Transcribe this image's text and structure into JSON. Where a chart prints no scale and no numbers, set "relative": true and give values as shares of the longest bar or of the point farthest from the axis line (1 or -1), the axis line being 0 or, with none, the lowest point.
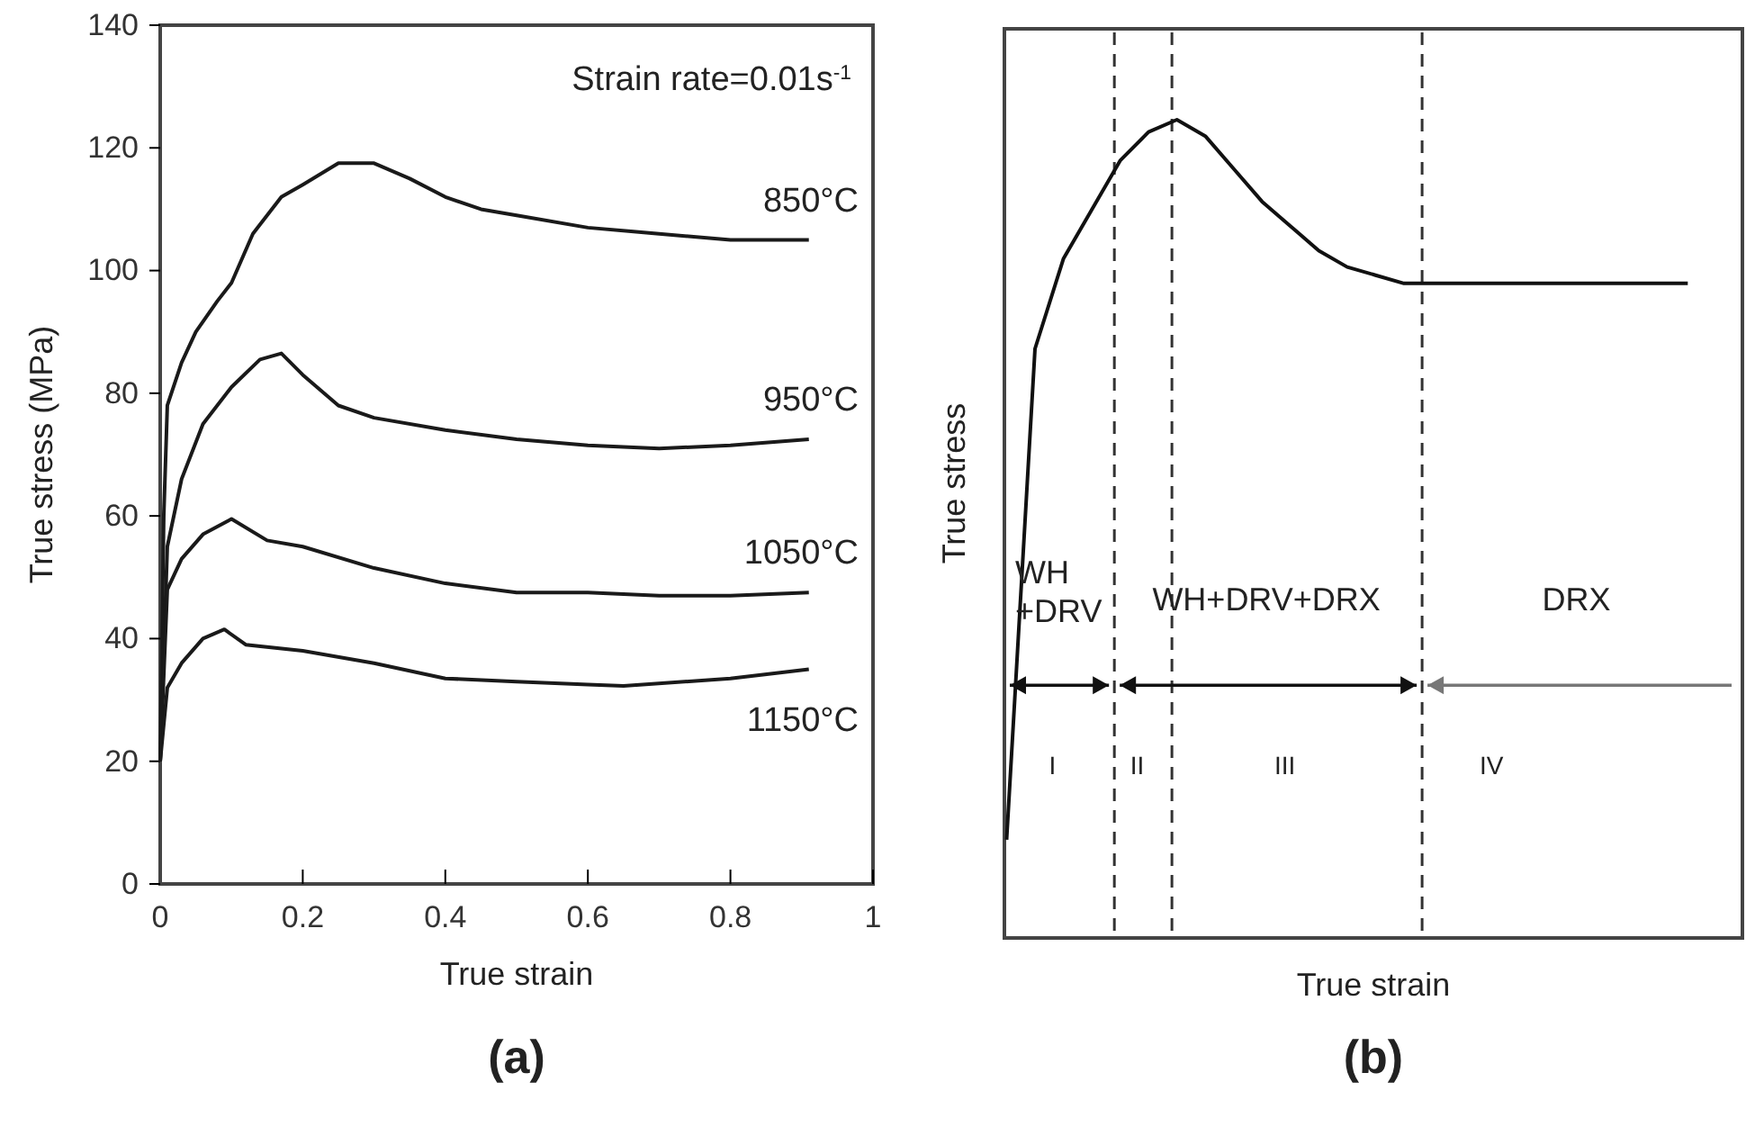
{
  "chart_data": [
    {
      "type": "line",
      "title": "(a)",
      "xlabel": "True strain",
      "ylabel": "True stress (MPa)",
      "xlim": [
        0,
        1
      ],
      "ylim": [
        0,
        140
      ],
      "xticks": [
        0,
        0.2,
        0.4,
        0.6,
        0.8,
        1
      ],
      "yticks": [
        0,
        20,
        40,
        60,
        80,
        100,
        120,
        140
      ],
      "grid": false,
      "marker": "none",
      "line_style": "solid",
      "annotations": [
        "Strain rate=0.01s$^{-1}$"
      ],
      "series": [
        {
          "name": "850°C",
          "color": "#1a1a1a",
          "x": [
            0,
            0.005,
            0.01,
            0.03,
            0.05,
            0.08,
            0.1,
            0.13,
            0.17,
            0.2,
            0.25,
            0.3,
            0.35,
            0.4,
            0.45,
            0.5,
            0.6,
            0.7,
            0.8,
            0.91
          ],
          "values": [
            20,
            60,
            78,
            85,
            90,
            95,
            98,
            106,
            112,
            114,
            117.5,
            117.5,
            115,
            112,
            110,
            109,
            107,
            106,
            105,
            105
          ]
        },
        {
          "name": "950°C",
          "color": "#1a1a1a",
          "x": [
            0,
            0.01,
            0.03,
            0.06,
            0.1,
            0.14,
            0.17,
            0.2,
            0.25,
            0.3,
            0.4,
            0.5,
            0.6,
            0.7,
            0.8,
            0.91
          ],
          "values": [
            20,
            55,
            66,
            75,
            81,
            85.5,
            86.5,
            83,
            78,
            76,
            74,
            72.5,
            71.5,
            71,
            71.5,
            72.5
          ]
        },
        {
          "name": "1050°C",
          "color": "#1a1a1a",
          "x": [
            0,
            0.01,
            0.03,
            0.06,
            0.1,
            0.15,
            0.2,
            0.3,
            0.4,
            0.5,
            0.6,
            0.7,
            0.8,
            0.91
          ],
          "values": [
            20,
            48,
            53,
            57,
            59.5,
            56,
            55,
            51.5,
            49,
            47.5,
            47.5,
            47,
            47,
            47.5
          ]
        },
        {
          "name": "1150°C",
          "color": "#1a1a1a",
          "x": [
            0,
            0.01,
            0.03,
            0.06,
            0.09,
            0.12,
            0.2,
            0.3,
            0.4,
            0.5,
            0.6,
            0.65,
            0.8,
            0.91
          ],
          "values": [
            20,
            32,
            36,
            40,
            41.5,
            39,
            38,
            36,
            33.5,
            33,
            32.5,
            32.3,
            33.5,
            35
          ]
        }
      ]
    },
    {
      "type": "line",
      "title": "(b)",
      "xlabel": "True strain",
      "ylabel": "True stress",
      "relative": true,
      "grid": false,
      "marker": "none",
      "line_style": "solid",
      "annotations": [
        "WH\n+DRV",
        "WH+DRV+DRX",
        "DRX",
        "I",
        "II",
        "III",
        "IV"
      ],
      "categories": [
        null,
        null,
        null,
        null,
        null,
        null,
        null,
        null,
        null,
        null,
        null,
        null,
        null,
        null,
        null,
        null,
        null,
        null,
        null,
        null,
        null,
        null,
        null,
        null,
        null
      ],
      "series": [
        {
          "color": "#111111",
          "values": [
            0.12,
            0.72,
            0.83,
            0.89,
            0.95,
            0.985,
            1,
            0.98,
            0.94,
            0.9,
            0.87,
            0.84,
            0.82,
            0.81,
            0.8,
            0.8,
            0.8,
            0.8,
            0.8,
            0.8,
            0.8,
            0.8,
            0.8,
            0.8,
            0.8
          ]
        }
      ]
    }
  ]
}
